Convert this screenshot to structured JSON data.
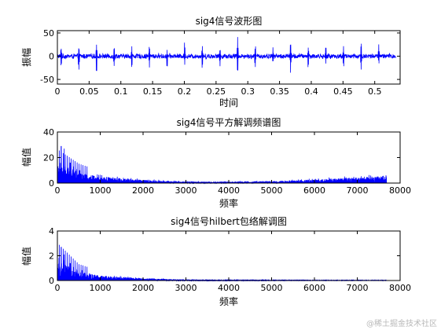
{
  "watermark": "@稀土掘金技术社区",
  "chart_data": [
    {
      "type": "line",
      "title": "sig4信号波形图",
      "xlabel": "时间",
      "ylabel": "振幅",
      "xlim": [
        0,
        0.54
      ],
      "ylim": [
        -60,
        55
      ],
      "xticks": [
        0,
        0.05,
        0.1,
        0.15,
        0.2,
        0.25,
        0.3,
        0.35,
        0.4,
        0.45,
        0.5
      ],
      "xtick_labels": [
        "0",
        "0.05",
        "0.1",
        "0.15",
        "0.2",
        "0.25",
        "0.3",
        "0.35",
        "0.4",
        "0.45",
        "0.5"
      ],
      "yticks": [
        -50,
        0,
        50
      ],
      "ytick_labels": [
        "-50",
        "0",
        "50"
      ],
      "grid": false,
      "series": [
        {
          "color": "#0000ff",
          "signal": {
            "x_start": 0,
            "x_end": 0.533,
            "noise_amplitude": 6,
            "impulse_period": 0.0278,
            "impulse_first": 0.006,
            "impulse_peaks": [
              22,
              18,
              30,
              25,
              20,
              28,
              15,
              35,
              24,
              21,
              45,
              26,
              19,
              38,
              23,
              27,
              20,
              32,
              25,
              18,
              30
            ],
            "impulse_troughs": [
              -25,
              -30,
              -45,
              -20,
              -28,
              -22,
              -35,
              -18,
              -30,
              -24,
              -40,
              -26,
              -20,
              -33,
              -29,
              -22,
              -27,
              -30,
              -21,
              -25,
              -28
            ]
          }
        }
      ]
    },
    {
      "type": "line",
      "title": "sig4信号平方解调频谱图",
      "xlabel": "频率",
      "ylabel": "幅值",
      "xlim": [
        0,
        8000
      ],
      "ylim": [
        0,
        40
      ],
      "xticks": [
        0,
        1000,
        2000,
        3000,
        4000,
        5000,
        6000,
        7000,
        8000
      ],
      "xtick_labels": [
        "0",
        "1000",
        "2000",
        "3000",
        "4000",
        "5000",
        "6000",
        "7000",
        "8000"
      ],
      "yticks": [
        0,
        20,
        40
      ],
      "ytick_labels": [
        "0",
        "20",
        "40"
      ],
      "grid": false,
      "series": [
        {
          "color": "#0000ff",
          "spectrum": {
            "f_end": 7680,
            "peak_value": 29,
            "envelope": [
              [
                0,
                14
              ],
              [
                500,
                8
              ],
              [
                1000,
                5
              ],
              [
                2000,
                2.5
              ],
              [
                3000,
                1.2
              ],
              [
                4000,
                1.2
              ],
              [
                5000,
                1.5
              ],
              [
                6000,
                2.8
              ],
              [
                7000,
                4.5
              ],
              [
                7680,
                6
              ]
            ],
            "line_spacing": 36,
            "line_peaks": [
              [
                90,
                29
              ],
              [
                160,
                27
              ],
              [
                230,
                18
              ],
              [
                300,
                16
              ],
              [
                380,
                13
              ],
              [
                450,
                11
              ],
              [
                520,
                10
              ]
            ]
          }
        }
      ]
    },
    {
      "type": "line",
      "title": "sig4信号hilbert包络解调图",
      "xlabel": "频率",
      "ylabel": "幅值",
      "xlim": [
        0,
        8000
      ],
      "ylim": [
        0,
        4
      ],
      "xticks": [
        0,
        1000,
        2000,
        3000,
        4000,
        5000,
        6000,
        7000,
        8000
      ],
      "xtick_labels": [
        "0",
        "1000",
        "2000",
        "3000",
        "4000",
        "5000",
        "6000",
        "7000",
        "8000"
      ],
      "yticks": [
        0,
        2,
        4
      ],
      "ytick_labels": [
        "0",
        "2",
        "4"
      ],
      "grid": false,
      "series": [
        {
          "color": "#0000ff",
          "spectrum": {
            "f_end": 7680,
            "peak_value": 2.7,
            "envelope": [
              [
                0,
                1.6
              ],
              [
                500,
                0.7
              ],
              [
                1000,
                0.4
              ],
              [
                2000,
                0.18
              ],
              [
                3000,
                0.08
              ],
              [
                4000,
                0.04
              ],
              [
                5000,
                0.03
              ],
              [
                6000,
                0.02
              ],
              [
                7680,
                0.02
              ]
            ],
            "line_spacing": 36,
            "line_peaks": [
              [
                90,
                2.7
              ],
              [
                160,
                2.1
              ],
              [
                230,
                1.7
              ],
              [
                300,
                1.4
              ],
              [
                380,
                1.1
              ],
              [
                450,
                0.9
              ]
            ]
          }
        }
      ]
    }
  ]
}
